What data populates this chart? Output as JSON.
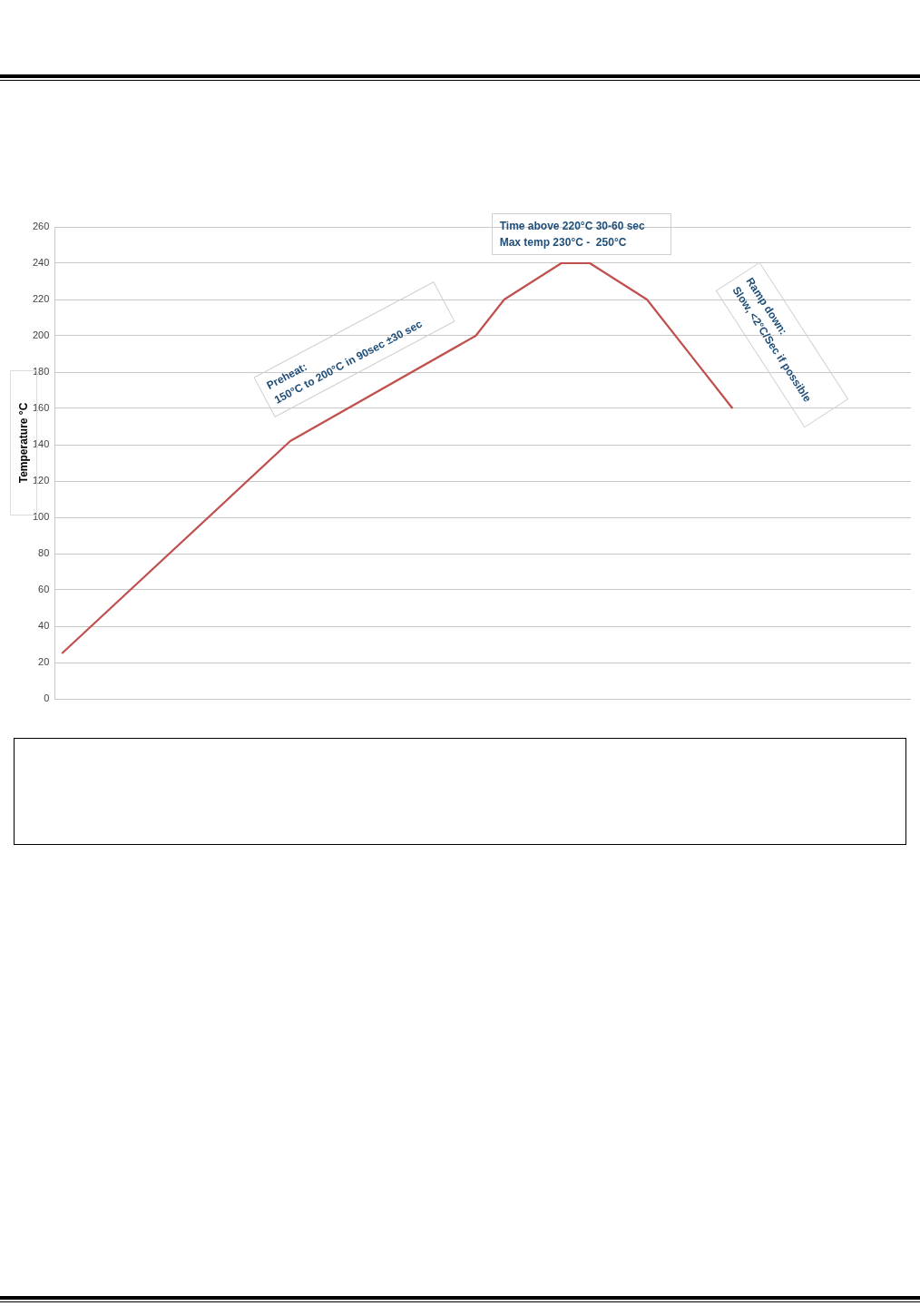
{
  "chart_data": {
    "type": "line",
    "ylabel": "Temperature °C",
    "categories": [
      null,
      null,
      null,
      null,
      null,
      null,
      null,
      null,
      null,
      null,
      null,
      null,
      null,
      null,
      null,
      null,
      null,
      null,
      null,
      null,
      null,
      null,
      null,
      null,
      null,
      null,
      null,
      null,
      null,
      null,
      null,
      null,
      null,
      null,
      null,
      null,
      null,
      null,
      null,
      null,
      null,
      null,
      null,
      null,
      null,
      null,
      null,
      null,
      null,
      null,
      null,
      null,
      null,
      null,
      null,
      null,
      null,
      null,
      null,
      null
    ],
    "series": [
      {
        "color": "#c0504d",
        "values": [
          25,
          null,
          null,
          null,
          null,
          null,
          null,
          null,
          null,
          null,
          null,
          null,
          null,
          null,
          null,
          null,
          142,
          null,
          null,
          null,
          null,
          null,
          null,
          null,
          null,
          null,
          null,
          null,
          null,
          200,
          null,
          220,
          null,
          null,
          null,
          240,
          null,
          240,
          null,
          null,
          null,
          220,
          null,
          null,
          null,
          null,
          null,
          160,
          null,
          null,
          null,
          null,
          null,
          null,
          null,
          null,
          null,
          null,
          null,
          null
        ]
      }
    ],
    "ylim": [
      0,
      260
    ],
    "yticks": [
      0,
      20,
      40,
      60,
      80,
      100,
      120,
      140,
      160,
      180,
      200,
      220,
      240,
      260
    ],
    "grid": "y",
    "tick_labels": "y",
    "marker": "none",
    "line_style": "solid",
    "legend": false,
    "annotations": [
      "Preheat:\n150°C to 200°C in 90sec ±30 sec",
      "Time above 220°C 30-60 sec\nMax temp 230°C -  250°C",
      "Ramp down:\nSlow, <2°C/Sec if possible"
    ]
  }
}
